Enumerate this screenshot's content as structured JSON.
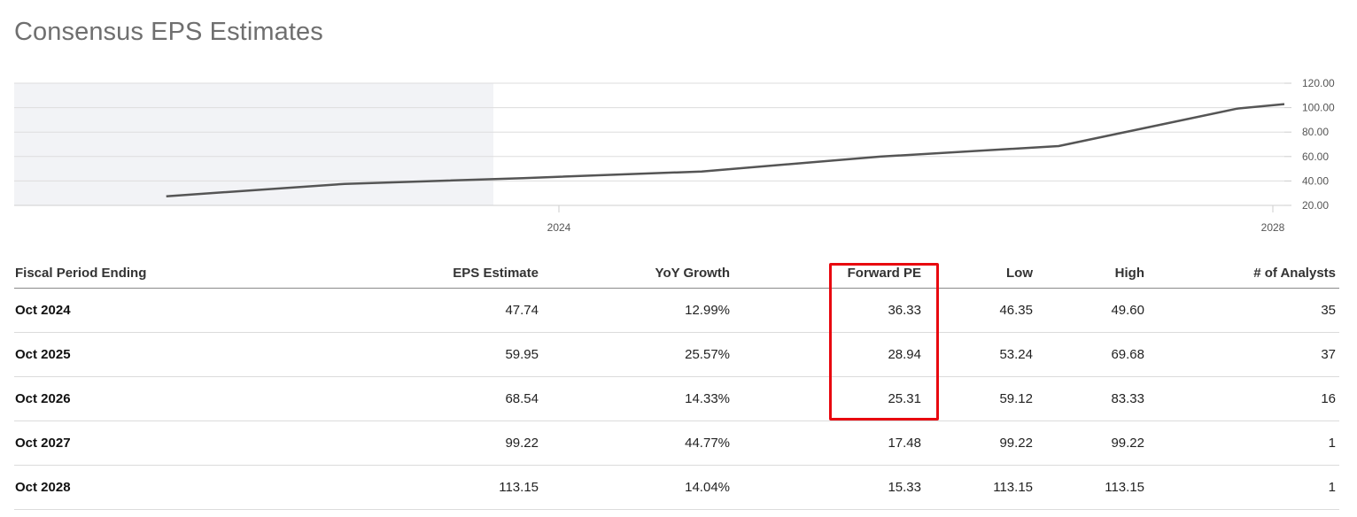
{
  "header": {
    "title": "Consensus EPS Estimates"
  },
  "chart_data": {
    "type": "line",
    "title": "",
    "xlabel": "",
    "ylabel": "",
    "x": [
      "Oct 2021",
      "Oct 2022",
      "Oct 2023",
      "Oct 2024",
      "Oct 2025",
      "Oct 2026",
      "Oct 2027",
      "Oct 2028"
    ],
    "x_years": [
      2021.8,
      2022.8,
      2023.8,
      2024.8,
      2025.8,
      2026.8,
      2027.8,
      2028.8
    ],
    "series": [
      {
        "values": [
          27.5,
          37.6,
          42.3,
          47.74,
          59.95,
          68.54,
          99.22,
          113.15
        ]
      }
    ],
    "xticks": [
      2024,
      2028
    ],
    "xtick_labels": [
      "2024",
      "2028"
    ],
    "yticks": [
      20,
      40,
      60,
      80,
      100,
      120
    ],
    "ytick_labels": [
      "20.00",
      "40.00",
      "60.00",
      "80.00",
      "100.00",
      "120.00"
    ],
    "ylim": [
      20,
      120
    ],
    "grid": true,
    "y_axis_side": "right",
    "historical_shaded": true
  },
  "table": {
    "columns": [
      "Fiscal Period Ending",
      "EPS Estimate",
      "YoY Growth",
      "Forward PE",
      "Low",
      "High",
      "# of Analysts"
    ],
    "rows": [
      [
        "Oct 2024",
        "47.74",
        "12.99%",
        "36.33",
        "46.35",
        "49.60",
        "35"
      ],
      [
        "Oct 2025",
        "59.95",
        "25.57%",
        "28.94",
        "53.24",
        "69.68",
        "37"
      ],
      [
        "Oct 2026",
        "68.54",
        "14.33%",
        "25.31",
        "59.12",
        "83.33",
        "16"
      ],
      [
        "Oct 2027",
        "99.22",
        "44.77%",
        "17.48",
        "99.22",
        "99.22",
        "1"
      ],
      [
        "Oct 2028",
        "113.15",
        "14.04%",
        "15.33",
        "113.15",
        "113.15",
        "1"
      ]
    ]
  },
  "annotation": {
    "highlight_column": "Forward PE",
    "highlight_color": "#e8080f"
  },
  "colors": {
    "line": "#555555",
    "shade": "#f2f3f6",
    "grid": "#dddddd"
  }
}
